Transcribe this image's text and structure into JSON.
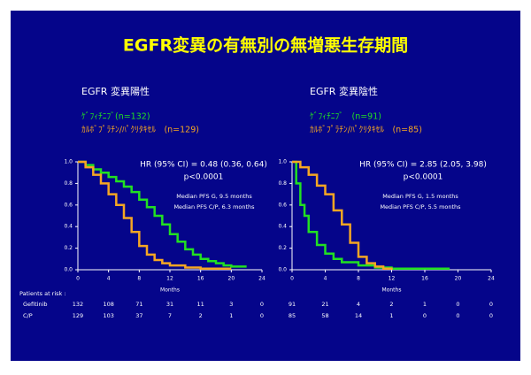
{
  "title": "EGFR変異の有無別の無増悪生存期間",
  "chart_data": [
    {
      "type": "step",
      "subtitle": "EGFR 変異陽性",
      "xlabel": "Months",
      "xlim": [
        0,
        24
      ],
      "xticks": [
        0,
        4,
        8,
        12,
        16,
        20,
        24
      ],
      "ylim": [
        0,
        1
      ],
      "yticks": [
        {
          "value": 0,
          "label": "0.0"
        },
        0.2,
        0.4,
        0.6,
        0.8,
        {
          "value": 1,
          "label": "1.0"
        }
      ],
      "annotations": [
        "HR (95% CI) = 0.48 (0.36, 0.64)",
        "p<0.0001",
        "Median PFS G, 9.5 months",
        "Median PFS C/P, 6.3 months"
      ],
      "series": [
        {
          "name": "ｹﾞﾌｨﾁﾆﾌﾞ(n=132)",
          "color": "#22e022",
          "x": [
            0,
            1,
            2,
            3,
            4,
            5,
            6,
            7,
            8,
            9,
            10,
            11,
            12,
            13,
            14,
            15,
            16,
            17,
            18,
            19,
            20,
            22
          ],
          "values": [
            1,
            0.97,
            0.93,
            0.9,
            0.86,
            0.82,
            0.77,
            0.72,
            0.65,
            0.58,
            0.5,
            0.42,
            0.33,
            0.26,
            0.19,
            0.14,
            0.1,
            0.08,
            0.06,
            0.04,
            0.03,
            0.03
          ]
        },
        {
          "name": "ｶﾙﾎﾞﾌﾟﾗﾁﾝ/ﾊﾟｸﾘﾀｷｾﾙ　(n=129)",
          "color": "#f5a623",
          "x": [
            0,
            1,
            2,
            3,
            4,
            5,
            6,
            7,
            8,
            9,
            10,
            11,
            12,
            14,
            16,
            20
          ],
          "values": [
            1,
            0.95,
            0.88,
            0.8,
            0.7,
            0.6,
            0.48,
            0.35,
            0.22,
            0.14,
            0.09,
            0.06,
            0.04,
            0.02,
            0.01,
            0.01
          ]
        }
      ],
      "risk_header": "Patients at risk :",
      "risk": [
        {
          "name": "Gefitinib",
          "counts": [
            132,
            108,
            71,
            31,
            11,
            3,
            0
          ]
        },
        {
          "name": "C/P",
          "counts": [
            129,
            103,
            37,
            7,
            2,
            1,
            0
          ]
        }
      ]
    },
    {
      "type": "step",
      "subtitle": "EGFR 変異陰性",
      "xlabel": "Months",
      "xlim": [
        0,
        24
      ],
      "xticks": [
        0,
        4,
        8,
        12,
        16,
        20,
        24
      ],
      "ylim": [
        0,
        1
      ],
      "yticks": [
        {
          "value": 0,
          "label": "0.0"
        },
        0.2,
        0.4,
        0.6,
        0.8,
        {
          "value": 1,
          "label": "1.0"
        }
      ],
      "annotations": [
        "HR (95% CI) = 2.85 (2.05, 3.98)",
        "p<0.0001",
        "Median PFS G, 1.5 months",
        "Median PFS C/P, 5.5 months"
      ],
      "series": [
        {
          "name": "ｹﾞﾌｨﾁﾆﾌﾞ　(n=91)",
          "color": "#22e022",
          "x": [
            0,
            0.5,
            1,
            1.5,
            2,
            3,
            4,
            5,
            6,
            8,
            10,
            12,
            19
          ],
          "values": [
            1,
            0.8,
            0.6,
            0.5,
            0.35,
            0.23,
            0.15,
            0.1,
            0.07,
            0.04,
            0.02,
            0.01,
            0.01
          ]
        },
        {
          "name": "ｶﾙﾎﾞﾌﾟﾗﾁﾝ/ﾊﾟｸﾘﾀｷｾﾙ　(n=85)",
          "color": "#f5a623",
          "x": [
            0,
            1,
            2,
            3,
            4,
            5,
            6,
            7,
            8,
            9,
            10,
            11,
            12
          ],
          "values": [
            1,
            0.95,
            0.88,
            0.78,
            0.7,
            0.55,
            0.42,
            0.25,
            0.12,
            0.06,
            0.03,
            0.01,
            0
          ]
        }
      ],
      "risk": [
        {
          "counts": [
            91,
            21,
            4,
            2,
            1,
            0,
            0
          ]
        },
        {
          "counts": [
            85,
            58,
            14,
            1,
            0,
            0,
            0
          ]
        }
      ]
    }
  ]
}
